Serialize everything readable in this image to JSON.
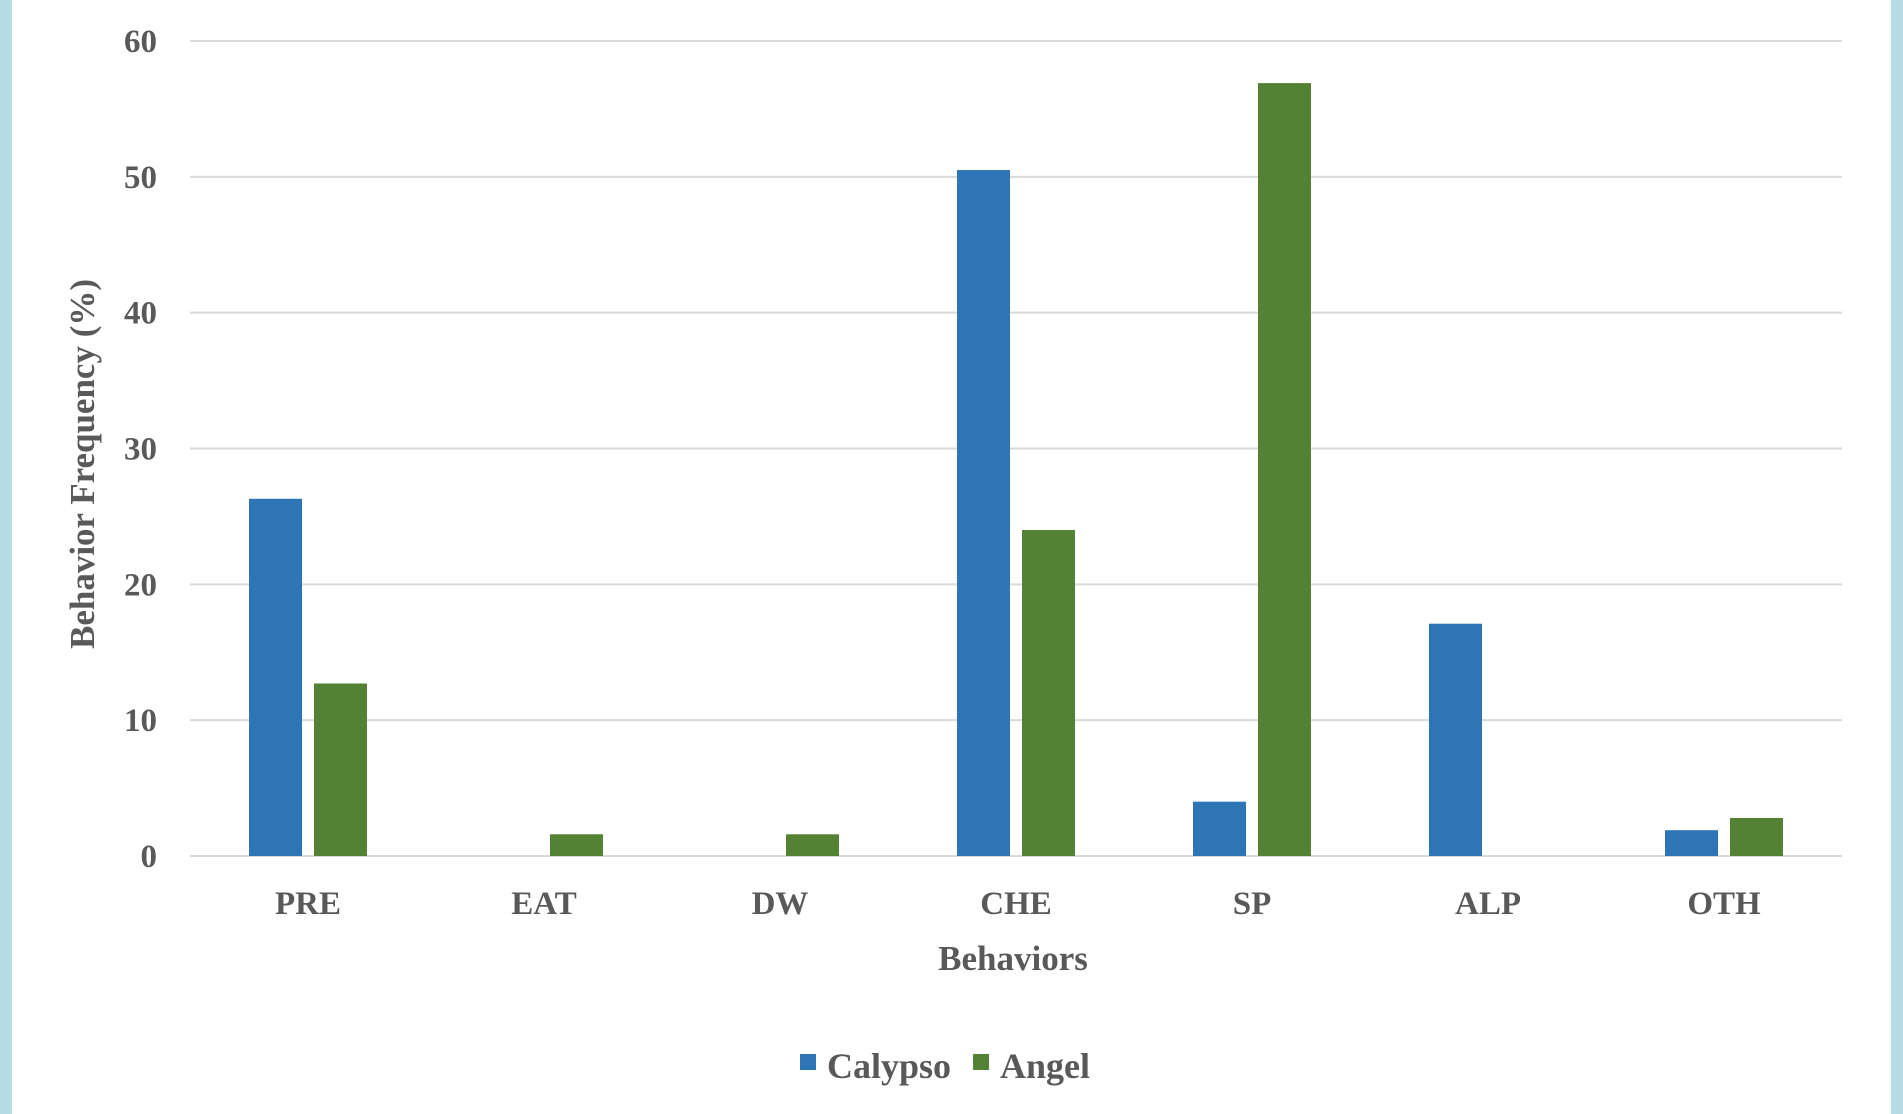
{
  "chart_data": {
    "type": "bar",
    "title": "",
    "xlabel": "Behaviors",
    "ylabel": "Behavior Frequency (%)",
    "ylim": [
      0,
      60
    ],
    "yticks": [
      0,
      10,
      20,
      30,
      40,
      50,
      60
    ],
    "grid": true,
    "legend_position": "bottom",
    "categories": [
      "PRE",
      "EAT",
      "DW",
      "CHE",
      "SP",
      "ALP",
      "OTH"
    ],
    "series": [
      {
        "name": "Calypso",
        "color": "#2e75b6",
        "values": [
          26.3,
          0,
          0,
          50.5,
          4,
          17.1,
          1.9
        ]
      },
      {
        "name": "Angel",
        "color": "#548235",
        "values": [
          12.7,
          1.6,
          1.6,
          24,
          56.9,
          0,
          2.8
        ]
      }
    ]
  }
}
